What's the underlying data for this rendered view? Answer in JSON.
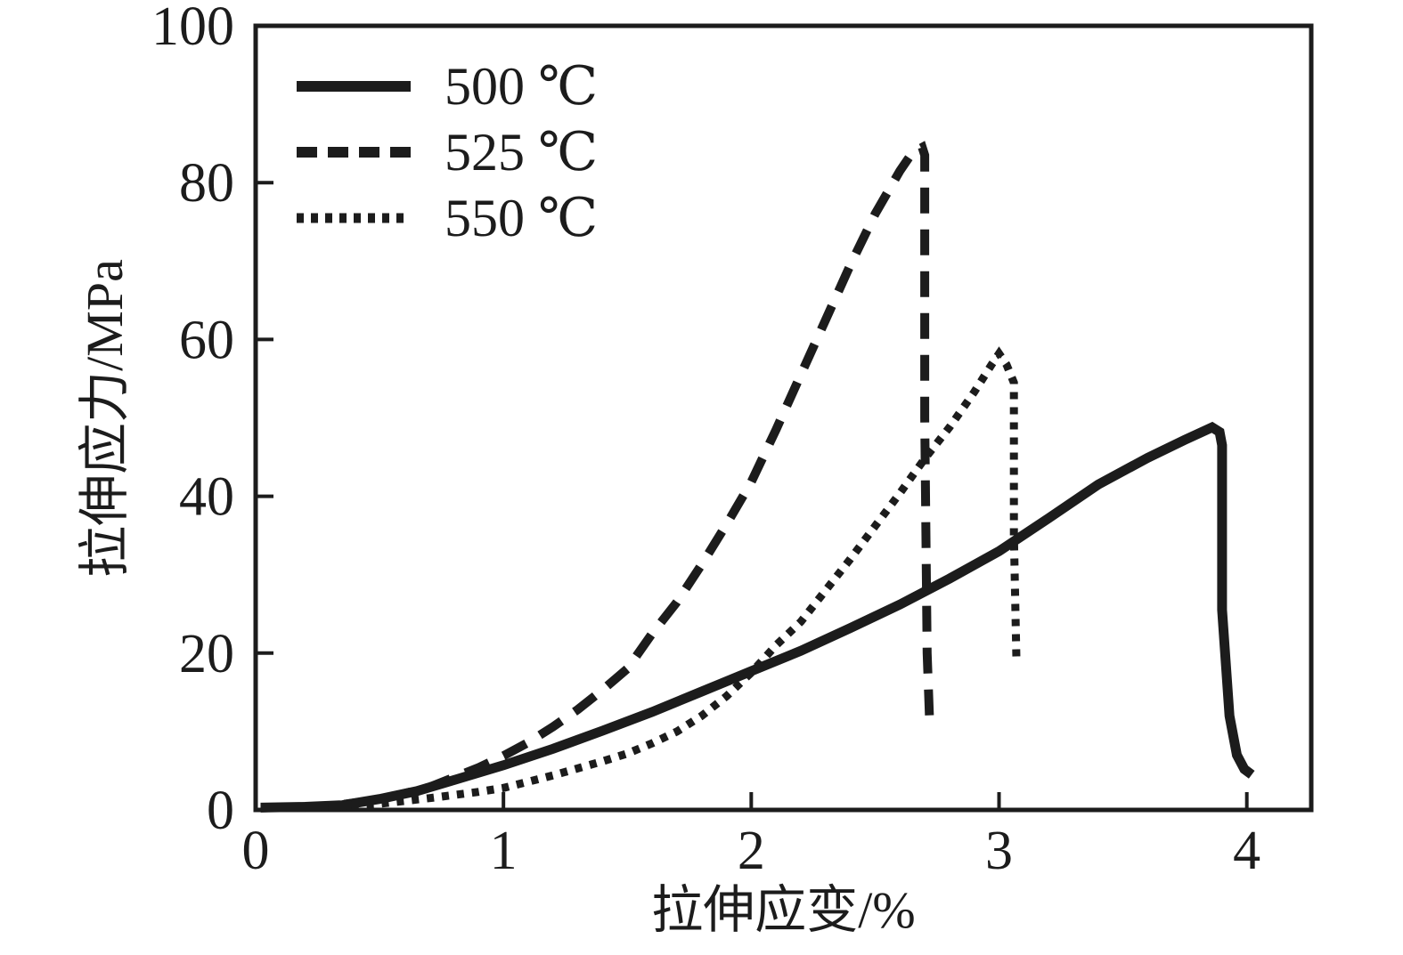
{
  "figure": {
    "background": "#ffffff",
    "line_color": "#1c1c1c"
  },
  "chart_data": {
    "type": "line",
    "title": "",
    "xlabel": "拉伸应变/%",
    "ylabel": "拉伸应力/MPa",
    "xlim": [
      0,
      4.26
    ],
    "ylim": [
      0,
      100
    ],
    "xticks": [
      0,
      1,
      2,
      3,
      4
    ],
    "xtick_labels": [
      "0",
      "1",
      "2",
      "3",
      "4"
    ],
    "yticks": [
      0,
      20,
      40,
      60,
      80,
      100
    ],
    "ytick_labels": [
      "0",
      "20",
      "40",
      "60",
      "80",
      "100"
    ],
    "grid": false,
    "legend_position": "top-left",
    "series": [
      {
        "name": "500 ℃",
        "style": "solid",
        "peak": {
          "strain": 3.86,
          "stress": 48.8
        },
        "points": [
          [
            0.02,
            0.3
          ],
          [
            0.2,
            0.4
          ],
          [
            0.35,
            0.6
          ],
          [
            0.5,
            1.4
          ],
          [
            0.65,
            2.4
          ],
          [
            0.8,
            3.8
          ],
          [
            1.0,
            5.7
          ],
          [
            1.2,
            7.8
          ],
          [
            1.4,
            10.1
          ],
          [
            1.6,
            12.5
          ],
          [
            1.8,
            15.1
          ],
          [
            2.0,
            17.7
          ],
          [
            2.2,
            20.3
          ],
          [
            2.4,
            23.2
          ],
          [
            2.6,
            26.2
          ],
          [
            2.8,
            29.5
          ],
          [
            3.0,
            33.0
          ],
          [
            3.2,
            37.2
          ],
          [
            3.4,
            41.5
          ],
          [
            3.6,
            44.9
          ],
          [
            3.75,
            47.2
          ],
          [
            3.86,
            48.8
          ],
          [
            3.89,
            48.2
          ],
          [
            3.9,
            46.5
          ],
          [
            3.9,
            25.5
          ],
          [
            3.93,
            12.0
          ],
          [
            3.96,
            7.0
          ],
          [
            3.99,
            5.2
          ],
          [
            4.02,
            4.5
          ]
        ]
      },
      {
        "name": "525 ℃",
        "style": "dashed",
        "peak": {
          "strain": 2.69,
          "stress": 84.5
        },
        "points": [
          [
            0.02,
            0.3
          ],
          [
            0.3,
            0.5
          ],
          [
            0.5,
            1.3
          ],
          [
            0.7,
            2.9
          ],
          [
            0.9,
            5.4
          ],
          [
            1.0,
            6.9
          ],
          [
            1.1,
            8.6
          ],
          [
            1.2,
            10.6
          ],
          [
            1.3,
            12.8
          ],
          [
            1.4,
            15.3
          ],
          [
            1.5,
            18.0
          ],
          [
            1.6,
            22.5
          ],
          [
            1.7,
            26.5
          ],
          [
            1.8,
            31.3
          ],
          [
            1.9,
            36.4
          ],
          [
            2.0,
            41.8
          ],
          [
            2.1,
            48.5
          ],
          [
            2.2,
            55.5
          ],
          [
            2.3,
            62.5
          ],
          [
            2.4,
            69.5
          ],
          [
            2.5,
            76.0
          ],
          [
            2.6,
            81.5
          ],
          [
            2.65,
            83.8
          ],
          [
            2.69,
            84.5
          ],
          [
            2.7,
            83.5
          ],
          [
            2.7,
            50.0
          ],
          [
            2.71,
            20.0
          ],
          [
            2.72,
            11.2
          ]
        ]
      },
      {
        "name": "550 ℃",
        "style": "dotted",
        "peak": {
          "strain": 3.0,
          "stress": 58.2
        },
        "points": [
          [
            0.02,
            0.2
          ],
          [
            0.3,
            0.4
          ],
          [
            0.5,
            0.8
          ],
          [
            0.7,
            1.5
          ],
          [
            0.9,
            2.3
          ],
          [
            1.0,
            2.8
          ],
          [
            1.1,
            3.6
          ],
          [
            1.2,
            4.4
          ],
          [
            1.3,
            5.3
          ],
          [
            1.4,
            6.2
          ],
          [
            1.5,
            7.2
          ],
          [
            1.6,
            8.5
          ],
          [
            1.7,
            10.0
          ],
          [
            1.8,
            12.0
          ],
          [
            1.9,
            14.5
          ],
          [
            2.0,
            17.5
          ],
          [
            2.1,
            21.0
          ],
          [
            2.2,
            24.0
          ],
          [
            2.3,
            28.0
          ],
          [
            2.4,
            32.0
          ],
          [
            2.5,
            36.2
          ],
          [
            2.6,
            40.4
          ],
          [
            2.7,
            44.8
          ],
          [
            2.8,
            48.8
          ],
          [
            2.9,
            53.3
          ],
          [
            2.97,
            56.8
          ],
          [
            3.0,
            58.2
          ],
          [
            3.03,
            56.8
          ],
          [
            3.06,
            54.5
          ],
          [
            3.06,
            35.0
          ],
          [
            3.07,
            19.3
          ]
        ]
      }
    ]
  }
}
